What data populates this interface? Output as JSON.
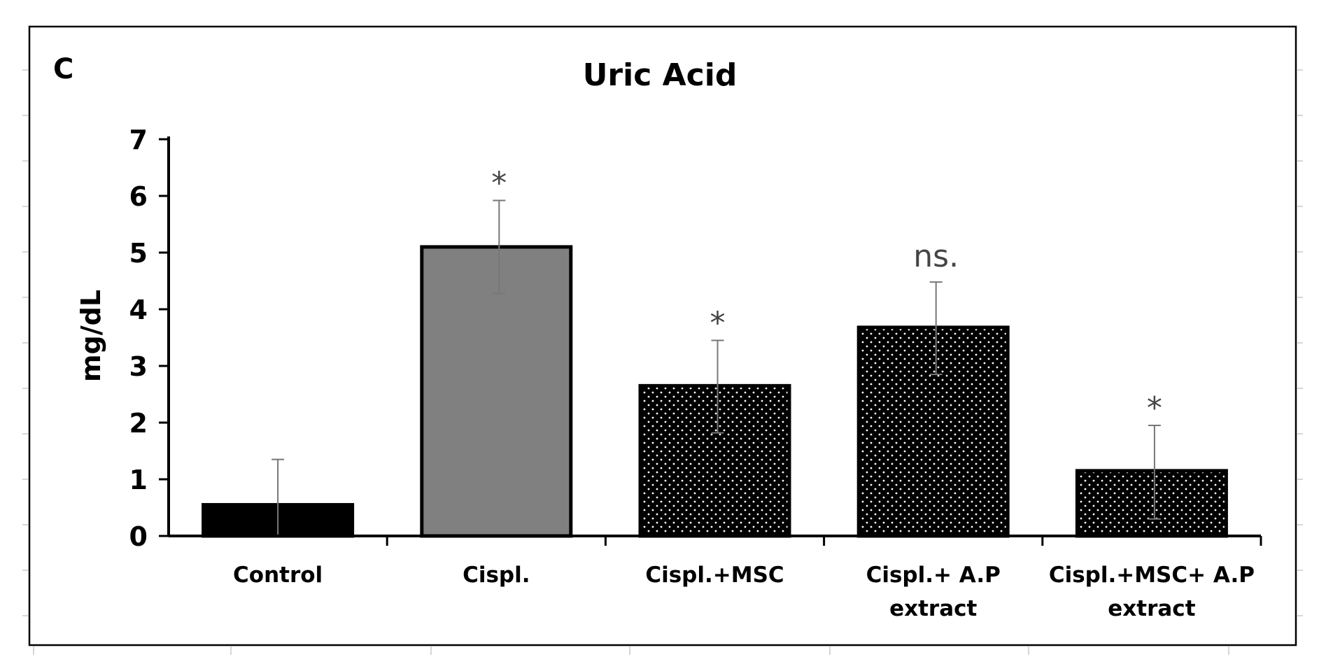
{
  "panel_label": "C",
  "chart_data": {
    "type": "bar",
    "title": "Uric Acid",
    "xlabel": "",
    "ylabel": "mg/dL",
    "ylim": [
      0,
      7
    ],
    "yticks": [
      "0",
      "1",
      "2",
      "3",
      "4",
      "5",
      "6",
      "7"
    ],
    "categories": [
      [
        "Control"
      ],
      [
        "Cispl."
      ],
      [
        "Cispl.+MSC"
      ],
      [
        "Cispl.+ A.P",
        "extract"
      ],
      [
        "Cispl.+MSC+ A.P",
        "extract"
      ]
    ],
    "values": [
      0.55,
      5.1,
      2.65,
      3.68,
      1.15
    ],
    "error_low": [
      0.0,
      4.28,
      1.82,
      2.85,
      0.3
    ],
    "error_high": [
      1.35,
      5.92,
      3.45,
      4.48,
      1.95
    ],
    "annotations": [
      "",
      "*",
      "*",
      "ns.",
      "*"
    ],
    "fills": [
      "solid-black",
      "solid-gray",
      "dotted-black",
      "dotted-black",
      "dotted-black"
    ],
    "colors": {
      "bar_black": "#000000",
      "bar_gray": "#808080",
      "dot": "#ffffff",
      "error_bar": "#777777",
      "annotation": "#444444"
    },
    "grid": false,
    "legend": "none"
  }
}
